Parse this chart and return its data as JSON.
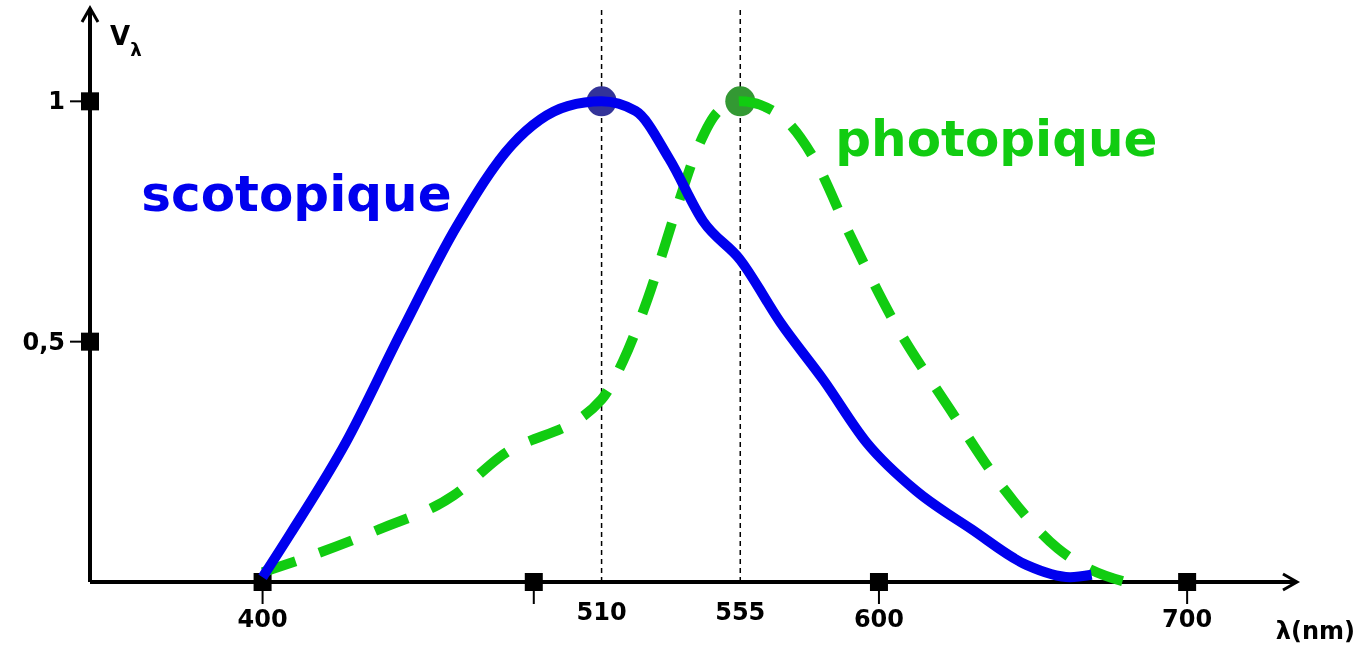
{
  "chart_data": {
    "type": "line",
    "xlabel": "λ(nm)",
    "ylabel": "V$_{λ}$",
    "xlim": [
      344,
      735
    ],
    "ylim": [
      0,
      1.19
    ],
    "xticks": [
      400,
      {
        "value": 488,
        "label": null
      },
      600,
      700
    ],
    "yticks": [
      {
        "value": 0.5,
        "label": "0,5"
      },
      1
    ],
    "grid": false,
    "ref_lines": [
      {
        "axis": "x",
        "value": 510,
        "label": "510",
        "line_style": "dashed",
        "color": "#000000"
      },
      {
        "axis": "x",
        "value": 555,
        "label": "555",
        "line_style": "dashed",
        "color": "#000000"
      }
    ],
    "series": [
      {
        "name": "scotopique",
        "color": "#0000ee",
        "line_style": "solid",
        "marker": "none",
        "x": [
          400,
          409,
          427,
          445,
          463,
          481,
          499,
          510,
          521,
          532,
          543,
          555,
          568,
          582,
          596,
          612,
          630,
          648,
          662,
          669
        ],
        "values": [
          0.01,
          0.1,
          0.29,
          0.52,
          0.74,
          0.91,
          0.99,
          1.0,
          0.98,
          0.88,
          0.75,
          0.67,
          0.54,
          0.42,
          0.29,
          0.19,
          0.11,
          0.035,
          0.01,
          0.015
        ]
      },
      {
        "name": "photopique",
        "color": "#11cc11",
        "line_style": "dashed",
        "marker": "none",
        "x": [
          400,
          418,
          438,
          462,
          477,
          510,
          517,
          525,
          534,
          541,
          548,
          555,
          568,
          579,
          590,
          605,
          623,
          641,
          658,
          669,
          680
        ],
        "values": [
          0.02,
          0.06,
          0.11,
          0.18,
          0.26,
          0.38,
          0.46,
          0.59,
          0.77,
          0.9,
          0.98,
          1.0,
          0.97,
          0.88,
          0.73,
          0.54,
          0.36,
          0.19,
          0.07,
          0.025,
          0.0
        ]
      },
      {
        "type": "scatter",
        "color": "#333399",
        "marker": "circle",
        "x": [
          510
        ],
        "values": [
          1.0
        ]
      },
      {
        "type": "scatter",
        "color": "#339933",
        "marker": "circle",
        "x": [
          555
        ],
        "values": [
          1.0
        ]
      }
    ]
  }
}
